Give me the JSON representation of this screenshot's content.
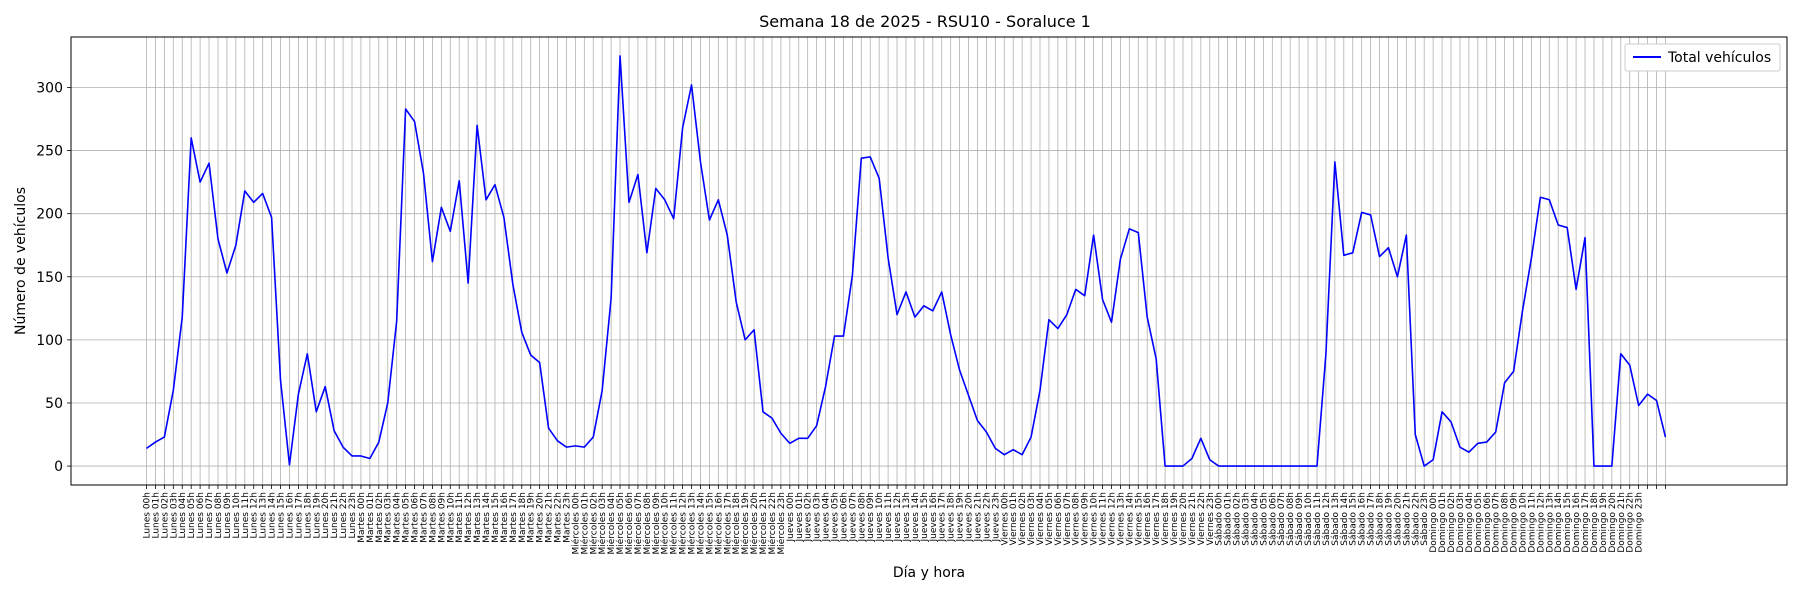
{
  "chart_data": {
    "type": "line",
    "title": "Semana 18 de 2025 - RSU10 - Soraluce 1",
    "xlabel": "Día y hora",
    "ylabel": "Número de vehículos",
    "ylim": [
      -15,
      340
    ],
    "yticks": [
      0,
      50,
      100,
      150,
      200,
      250,
      300
    ],
    "grid": true,
    "legend_position": "top-right",
    "days": [
      "Lunes",
      "Martes",
      "Miércoles",
      "Jueves",
      "Viernes",
      "Sábado",
      "Domingo"
    ],
    "hours": [
      "00h",
      "01h",
      "02h",
      "03h",
      "04h",
      "05h",
      "06h",
      "07h",
      "08h",
      "09h",
      "10h",
      "11h",
      "12h",
      "13h",
      "14h",
      "15h",
      "16h",
      "17h",
      "18h",
      "19h",
      "20h",
      "21h",
      "22h",
      "23h"
    ],
    "series": [
      {
        "name": "Total vehículos",
        "color": "#0000ff",
        "values": [
          14,
          19,
          23,
          60,
          118,
          260,
          225,
          240,
          180,
          153,
          175,
          218,
          209,
          216,
          197,
          68,
          1,
          57,
          89,
          43,
          63,
          28,
          15,
          8,
          8,
          6,
          19,
          50,
          115,
          283,
          273,
          232,
          162,
          205,
          186,
          226,
          145,
          270,
          211,
          223,
          197,
          144,
          106,
          88,
          82,
          30,
          20,
          15,
          16,
          15,
          23,
          60,
          133,
          325,
          209,
          231,
          169,
          220,
          211,
          196,
          268,
          302,
          241,
          195,
          211,
          183,
          130,
          100,
          108,
          43,
          38,
          26,
          18,
          22,
          22,
          32,
          63,
          103,
          103,
          151,
          244,
          245,
          228,
          165,
          120,
          138,
          118,
          127,
          123,
          138,
          104,
          76,
          56,
          36,
          27,
          14,
          9,
          13,
          9,
          23,
          60,
          116,
          109,
          120,
          140,
          135,
          183,
          132,
          114,
          164,
          188,
          185,
          118,
          85,
          0,
          0,
          0,
          6,
          22,
          5,
          0,
          0,
          0,
          0,
          0,
          0,
          0,
          0,
          0,
          0,
          0,
          0,
          89,
          241,
          167,
          169,
          201,
          199,
          166,
          173,
          150,
          183,
          25,
          0,
          5,
          43,
          35,
          15,
          11,
          18,
          19,
          27,
          66,
          75,
          123,
          165,
          213,
          211,
          191,
          189,
          140,
          181,
          0,
          0,
          0,
          89,
          80,
          48,
          57,
          52,
          23
        ]
      }
    ]
  }
}
